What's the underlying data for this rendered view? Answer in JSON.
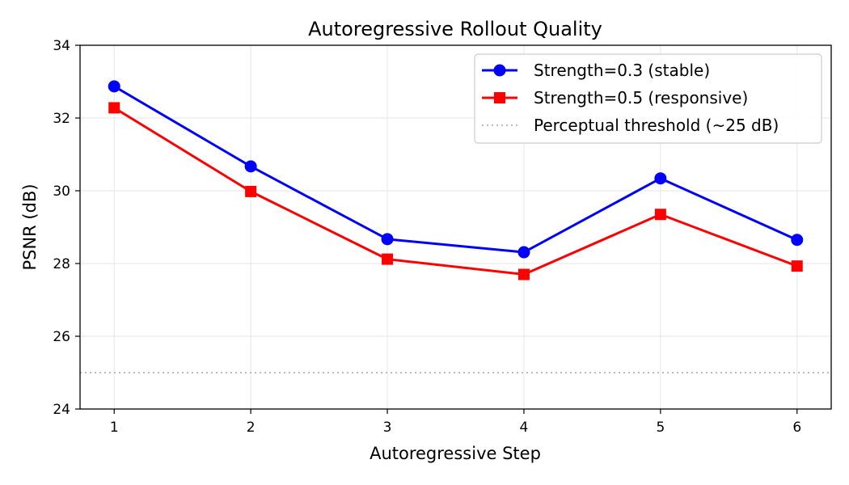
{
  "chart_data": {
    "type": "line",
    "title": "Autoregressive Rollout Quality",
    "xlabel": "Autoregressive Step",
    "ylabel": "PSNR (dB)",
    "x": [
      1,
      2,
      3,
      4,
      5,
      6
    ],
    "xlim": [
      0.75,
      6.25
    ],
    "ylim": [
      24,
      34
    ],
    "xticks": [
      1,
      2,
      3,
      4,
      5,
      6
    ],
    "yticks": [
      24,
      26,
      28,
      30,
      32,
      34
    ],
    "grid": true,
    "legend_position": "top-right",
    "series": [
      {
        "name": "Strength=0.3 (stable)",
        "values": [
          32.87,
          30.67,
          28.67,
          28.31,
          30.34,
          28.65
        ],
        "color": "#0000ff",
        "marker": "circle"
      },
      {
        "name": "Strength=0.5 (responsive)",
        "values": [
          32.28,
          29.98,
          28.12,
          27.7,
          29.35,
          27.93
        ],
        "color": "#ff0000",
        "marker": "square"
      }
    ],
    "reference_line": {
      "name": "Perceptual threshold (~25 dB)",
      "y": 25,
      "color": "#bbbbbb",
      "style": "dotted"
    }
  }
}
